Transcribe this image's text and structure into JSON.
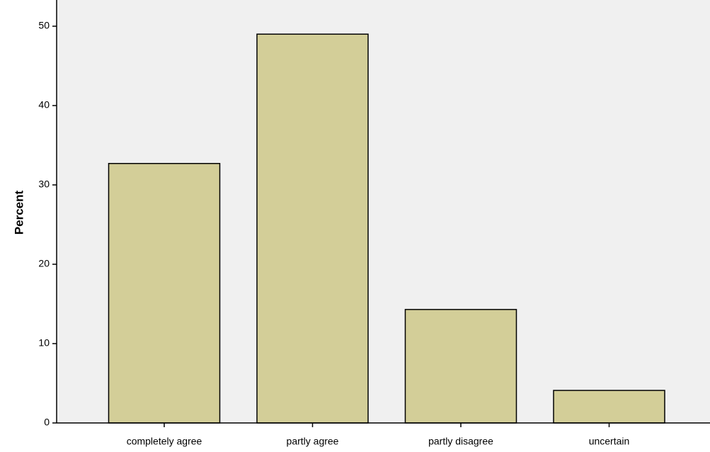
{
  "chart_data": {
    "type": "bar",
    "categories": [
      "completely agree",
      "partly agree",
      "partly disagree",
      "uncertain"
    ],
    "values": [
      32.7,
      49.0,
      14.3,
      4.1
    ],
    "title": "",
    "xlabel": "",
    "ylabel": "Percent",
    "ylim": [
      0,
      50
    ],
    "yticks": [
      0,
      10,
      20,
      30,
      40,
      50
    ],
    "grid": false,
    "colors": {
      "bar_fill": "#d3ce98",
      "bar_stroke": "#000000",
      "plot_background": "#f0f0f0"
    }
  }
}
